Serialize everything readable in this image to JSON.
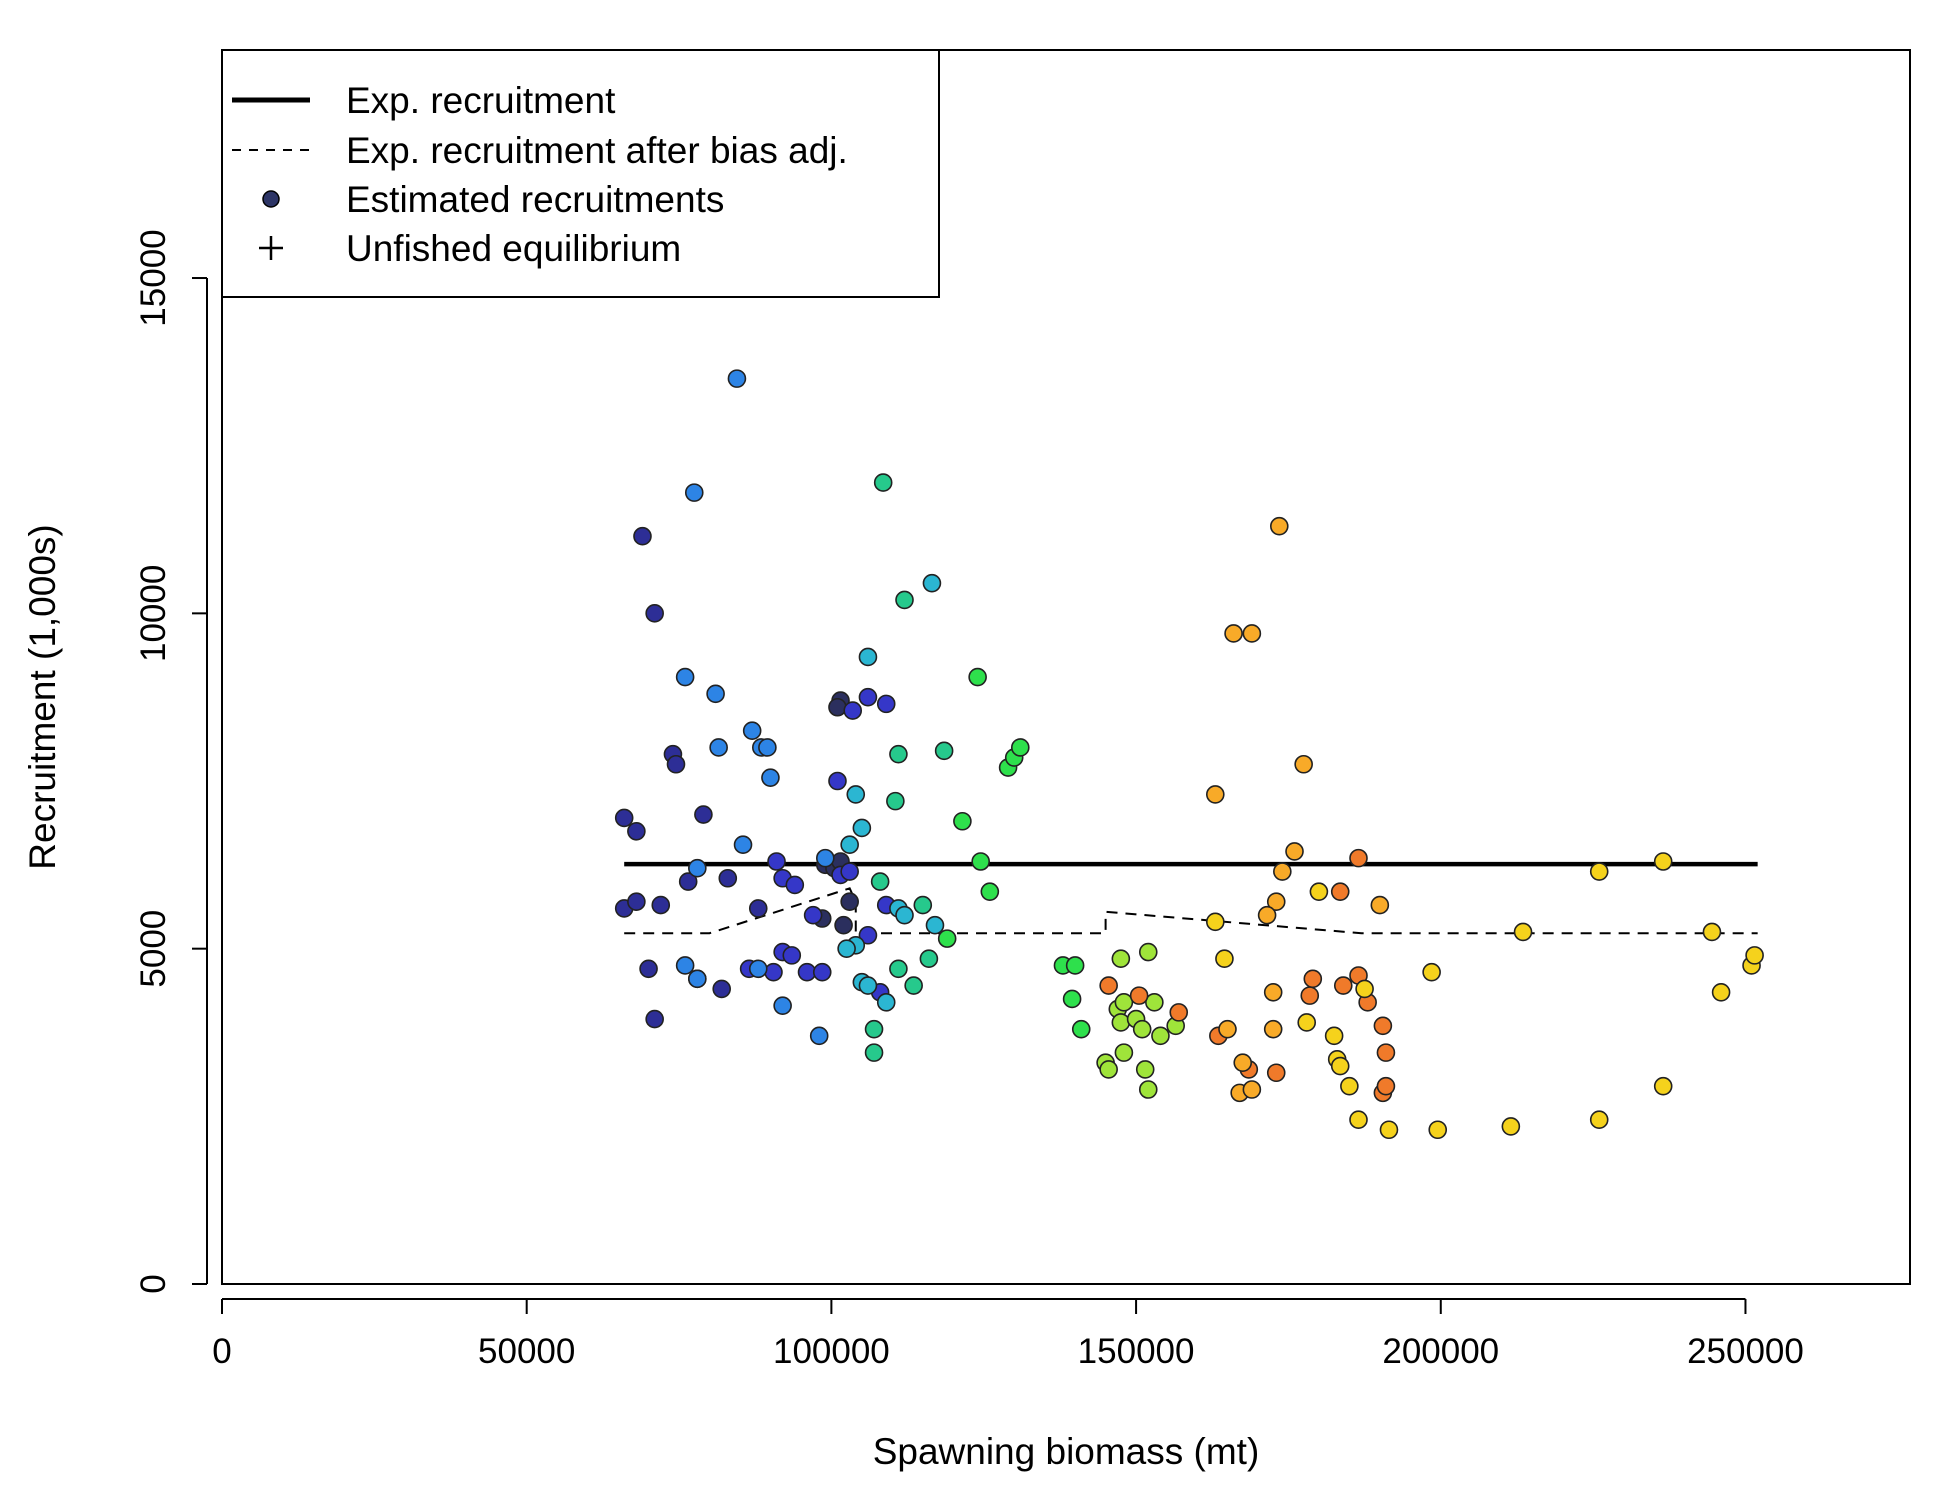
{
  "chart_data": {
    "type": "scatter",
    "title": "",
    "xlabel": "Spawning biomass (mt)",
    "ylabel": "Recruitment (1,000s)",
    "xlim": [
      0,
      277000
    ],
    "ylim": [
      0,
      18400
    ],
    "x_ticks": [
      0,
      50000,
      100000,
      150000,
      200000,
      250000
    ],
    "x_tick_labels": [
      "0",
      "50000",
      "100000",
      "150000",
      "200000",
      "250000"
    ],
    "y_ticks": [
      0,
      5000,
      10000,
      15000
    ],
    "y_tick_labels": [
      "0",
      "5000",
      "10000",
      "15000"
    ],
    "grid": false,
    "legend": {
      "position": "top-left",
      "entries": [
        {
          "label": "Exp. recruitment",
          "symbol": "solid-line"
        },
        {
          "label": "Exp. recruitment after bias adj.",
          "symbol": "dashed-line"
        },
        {
          "label": "Estimated recruitments",
          "symbol": "filled-circle",
          "color": "#2d3566"
        },
        {
          "label": "Unfished equilibrium",
          "symbol": "plus"
        }
      ]
    },
    "series": [
      {
        "kind": "line",
        "style": "solid",
        "points": [
          [
            66000,
            6260
          ],
          [
            252000,
            6260
          ]
        ]
      },
      {
        "kind": "line",
        "style": "dashed",
        "points": [
          [
            66000,
            5230
          ],
          [
            80000,
            5230
          ],
          [
            103000,
            5900
          ],
          [
            104000,
            5700
          ],
          [
            104000,
            5230
          ],
          [
            145000,
            5230
          ],
          [
            145000,
            5550
          ],
          [
            187000,
            5230
          ],
          [
            252000,
            5230
          ]
        ]
      },
      {
        "kind": "points",
        "color_scale": "year-gradient (dark navy -> blue -> teal -> green -> yellow-green -> orange -> yellow)",
        "points": [
          [
            99000,
            6250,
            "#2b2f5e"
          ],
          [
            100500,
            6200,
            "#2b2f5e"
          ],
          [
            102000,
            5350,
            "#2b2f5e"
          ],
          [
            101500,
            8700,
            "#2b2f5e"
          ],
          [
            101000,
            8600,
            "#2b2f5e"
          ],
          [
            103000,
            5700,
            "#2b2f5e"
          ],
          [
            98500,
            5450,
            "#2b2f5e"
          ],
          [
            101500,
            6300,
            "#2b2f5e"
          ],
          [
            66000,
            6950,
            "#2d2e96"
          ],
          [
            68000,
            6750,
            "#2d2e96"
          ],
          [
            66000,
            5600,
            "#2d2e96"
          ],
          [
            68000,
            5700,
            "#2d2e96"
          ],
          [
            72000,
            5650,
            "#2d2e96"
          ],
          [
            70000,
            4700,
            "#2d2e96"
          ],
          [
            71000,
            3950,
            "#2d2e96"
          ],
          [
            69000,
            11150,
            "#2d2e96"
          ],
          [
            71000,
            10000,
            "#2d2e96"
          ],
          [
            74000,
            7900,
            "#2d2e96"
          ],
          [
            74500,
            7750,
            "#2d2e96"
          ],
          [
            79000,
            7000,
            "#2d2e96"
          ],
          [
            78000,
            4550,
            "#2d2e96"
          ],
          [
            82000,
            4400,
            "#2d2e96"
          ],
          [
            76500,
            6000,
            "#2d2e96"
          ],
          [
            83000,
            6050,
            "#2d2e96"
          ],
          [
            88000,
            5600,
            "#2d2e96"
          ],
          [
            86500,
            4700,
            "#3537c8"
          ],
          [
            90500,
            4650,
            "#3537c8"
          ],
          [
            91000,
            6300,
            "#3537c8"
          ],
          [
            92000,
            6050,
            "#3537c8"
          ],
          [
            92000,
            4950,
            "#3537c8"
          ],
          [
            94000,
            5950,
            "#3537c8"
          ],
          [
            93500,
            4900,
            "#3537c8"
          ],
          [
            96000,
            4650,
            "#3537c8"
          ],
          [
            97000,
            5500,
            "#3537c8"
          ],
          [
            98500,
            4650,
            "#3537c8"
          ],
          [
            101000,
            7500,
            "#3537c8"
          ],
          [
            101500,
            6100,
            "#3537c8"
          ],
          [
            103500,
            8550,
            "#3537c8"
          ],
          [
            106000,
            8750,
            "#3537c8"
          ],
          [
            109000,
            8650,
            "#3537c8"
          ],
          [
            109000,
            5650,
            "#3537c8"
          ],
          [
            106000,
            5200,
            "#3537c8"
          ],
          [
            108000,
            4350,
            "#3537c8"
          ],
          [
            103000,
            6150,
            "#3537c8"
          ],
          [
            84500,
            13500,
            "#2d84e5"
          ],
          [
            77500,
            11800,
            "#2d84e5"
          ],
          [
            76000,
            9050,
            "#2d84e5"
          ],
          [
            81000,
            8800,
            "#2d84e5"
          ],
          [
            87000,
            8250,
            "#2d84e5"
          ],
          [
            88500,
            8000,
            "#2d84e5"
          ],
          [
            89500,
            8000,
            "#2d84e5"
          ],
          [
            81500,
            8000,
            "#2d84e5"
          ],
          [
            90000,
            7550,
            "#2d84e5"
          ],
          [
            85500,
            6550,
            "#2d84e5"
          ],
          [
            78000,
            6200,
            "#2d84e5"
          ],
          [
            76000,
            4750,
            "#2d84e5"
          ],
          [
            78000,
            4550,
            "#2d84e5"
          ],
          [
            88000,
            4700,
            "#2d84e5"
          ],
          [
            92000,
            4150,
            "#2d84e5"
          ],
          [
            98000,
            3700,
            "#2d84e5"
          ],
          [
            99000,
            6350,
            "#2d84e5"
          ],
          [
            106000,
            9350,
            "#2bb6d2"
          ],
          [
            104000,
            7300,
            "#2bb6d2"
          ],
          [
            105000,
            6800,
            "#2bb6d2"
          ],
          [
            103000,
            6550,
            "#2bb6d2"
          ],
          [
            104000,
            5050,
            "#2bb6d2"
          ],
          [
            102500,
            5000,
            "#2bb6d2"
          ],
          [
            105000,
            4500,
            "#2bb6d2"
          ],
          [
            106000,
            4450,
            "#2bb6d2"
          ],
          [
            111000,
            5600,
            "#2bb6d2"
          ],
          [
            112000,
            5500,
            "#2bb6d2"
          ],
          [
            109000,
            4200,
            "#2bb6d2"
          ],
          [
            116500,
            10450,
            "#2bb6d2"
          ],
          [
            117000,
            5350,
            "#2bb6d2"
          ],
          [
            112000,
            10200,
            "#26c98c"
          ],
          [
            111000,
            7900,
            "#26c98c"
          ],
          [
            118500,
            7950,
            "#26c98c"
          ],
          [
            110500,
            7200,
            "#26c98c"
          ],
          [
            108000,
            6000,
            "#26c98c"
          ],
          [
            111000,
            4700,
            "#26c98c"
          ],
          [
            107000,
            3800,
            "#26c98c"
          ],
          [
            107000,
            3450,
            "#26c98c"
          ],
          [
            115000,
            5650,
            "#26c98c"
          ],
          [
            116000,
            4850,
            "#26c98c"
          ],
          [
            113500,
            4450,
            "#26c98c"
          ],
          [
            108500,
            11950,
            "#26c98c"
          ],
          [
            119000,
            5150,
            "#2ee04c"
          ],
          [
            121500,
            6900,
            "#2ee04c"
          ],
          [
            124000,
            9050,
            "#2ee04c"
          ],
          [
            124500,
            6300,
            "#2ee04c"
          ],
          [
            126000,
            5850,
            "#2ee04c"
          ],
          [
            129000,
            7700,
            "#2ee04c"
          ],
          [
            130000,
            7850,
            "#2ee04c"
          ],
          [
            131000,
            8000,
            "#2ee04c"
          ],
          [
            138000,
            4750,
            "#2ee04c"
          ],
          [
            140000,
            4750,
            "#2ee04c"
          ],
          [
            139500,
            4250,
            "#2ee04c"
          ],
          [
            141000,
            3800,
            "#2ee04c"
          ],
          [
            147500,
            4850,
            "#9fe43a"
          ],
          [
            147000,
            4100,
            "#9fe43a"
          ],
          [
            148000,
            4200,
            "#9fe43a"
          ],
          [
            147500,
            3900,
            "#9fe43a"
          ],
          [
            148000,
            3450,
            "#9fe43a"
          ],
          [
            145000,
            3300,
            "#9fe43a"
          ],
          [
            145500,
            3200,
            "#9fe43a"
          ],
          [
            150000,
            3950,
            "#9fe43a"
          ],
          [
            151000,
            3800,
            "#9fe43a"
          ],
          [
            152000,
            4950,
            "#9fe43a"
          ],
          [
            153000,
            4200,
            "#9fe43a"
          ],
          [
            151500,
            3200,
            "#9fe43a"
          ],
          [
            152000,
            2900,
            "#9fe43a"
          ],
          [
            154000,
            3700,
            "#9fe43a"
          ],
          [
            156500,
            3850,
            "#9fe43a"
          ],
          [
            145500,
            4450,
            "#f07a2a"
          ],
          [
            150500,
            4300,
            "#f07a2a"
          ],
          [
            157000,
            4050,
            "#f07a2a"
          ],
          [
            163500,
            3700,
            "#f07a2a"
          ],
          [
            173000,
            3150,
            "#f07a2a"
          ],
          [
            168500,
            3200,
            "#f07a2a"
          ],
          [
            179000,
            4550,
            "#f07a2a"
          ],
          [
            178500,
            4300,
            "#f07a2a"
          ],
          [
            183500,
            5850,
            "#f07a2a"
          ],
          [
            184000,
            4450,
            "#f07a2a"
          ],
          [
            186500,
            6350,
            "#f07a2a"
          ],
          [
            186500,
            4600,
            "#f07a2a"
          ],
          [
            188000,
            4200,
            "#f07a2a"
          ],
          [
            190500,
            3850,
            "#f07a2a"
          ],
          [
            190500,
            2850,
            "#f07a2a"
          ],
          [
            191000,
            2950,
            "#f07a2a"
          ],
          [
            191000,
            3450,
            "#f07a2a"
          ],
          [
            173500,
            11300,
            "#f8aa28"
          ],
          [
            166000,
            9700,
            "#f8aa28"
          ],
          [
            169000,
            9700,
            "#f8aa28"
          ],
          [
            177500,
            7750,
            "#f8aa28"
          ],
          [
            163000,
            7300,
            "#f8aa28"
          ],
          [
            176000,
            6450,
            "#f8aa28"
          ],
          [
            174000,
            6150,
            "#f8aa28"
          ],
          [
            173000,
            5700,
            "#f8aa28"
          ],
          [
            171500,
            5500,
            "#f8aa28"
          ],
          [
            165000,
            3800,
            "#f8aa28"
          ],
          [
            172500,
            4350,
            "#f8aa28"
          ],
          [
            172500,
            3800,
            "#f8aa28"
          ],
          [
            167500,
            3300,
            "#f8aa28"
          ],
          [
            167000,
            2850,
            "#f8aa28"
          ],
          [
            169000,
            2900,
            "#f8aa28"
          ],
          [
            190000,
            5650,
            "#f8aa28"
          ],
          [
            163000,
            5400,
            "#f5d21c"
          ],
          [
            164500,
            4850,
            "#f5d21c"
          ],
          [
            180000,
            5850,
            "#f5d21c"
          ],
          [
            178000,
            3900,
            "#f5d21c"
          ],
          [
            182500,
            3700,
            "#f5d21c"
          ],
          [
            183000,
            3350,
            "#f5d21c"
          ],
          [
            183500,
            3250,
            "#f5d21c"
          ],
          [
            185000,
            2950,
            "#f5d21c"
          ],
          [
            186500,
            2450,
            "#f5d21c"
          ],
          [
            187500,
            4400,
            "#f5d21c"
          ],
          [
            191500,
            2300,
            "#f5d21c"
          ],
          [
            198500,
            4650,
            "#f5d21c"
          ],
          [
            199500,
            2300,
            "#f5d21c"
          ],
          [
            211500,
            2350,
            "#f5d21c"
          ],
          [
            213500,
            5250,
            "#f5d21c"
          ],
          [
            226000,
            6150,
            "#f5d21c"
          ],
          [
            226000,
            2450,
            "#f5d21c"
          ],
          [
            236500,
            6300,
            "#f5d21c"
          ],
          [
            236500,
            2950,
            "#f5d21c"
          ],
          [
            244500,
            5250,
            "#f5d21c"
          ],
          [
            246000,
            4350,
            "#f5d21c"
          ],
          [
            251000,
            4750,
            "#f5d21c"
          ],
          [
            251500,
            4900,
            "#f5d21c"
          ]
        ]
      }
    ]
  }
}
